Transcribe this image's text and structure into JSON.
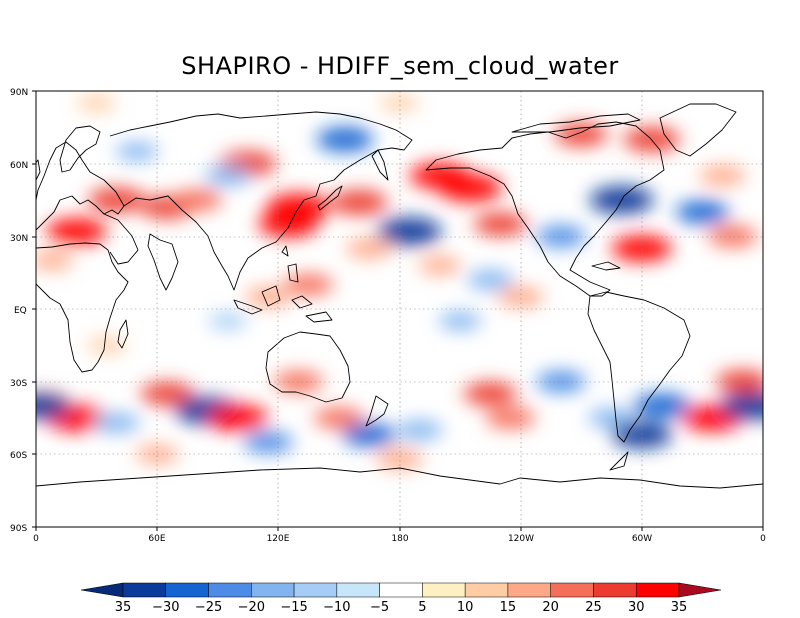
{
  "title": "SHAPIRO - HDIFF_sem_cloud_water",
  "map": {
    "projection": "cylindrical equidistant, global",
    "lat_labels": [
      "90N",
      "60N",
      "30N",
      "EQ",
      "30S",
      "60S",
      "90S"
    ],
    "lon_labels": [
      "0",
      "60E",
      "120E",
      "180",
      "120W",
      "60W",
      "0"
    ],
    "gridlines": "dotted, every 30 degrees",
    "coastlines": "black outline"
  },
  "colorbar": {
    "labels": [
      "35",
      "−30",
      "−25",
      "−20",
      "−15",
      "−10",
      "−5",
      "5",
      "10",
      "15",
      "20",
      "25",
      "30",
      "35"
    ],
    "bins": [
      "#0a3a9a",
      "#1464d2",
      "#4c8ce6",
      "#82b4f0",
      "#a5cdf5",
      "#c8e6fa",
      "#ffffff",
      "#fff0c3",
      "#ffcda5",
      "#ffa887",
      "#f56e5a",
      "#ec3c30",
      "#ff0000"
    ],
    "low_end_color": "#062a78",
    "high_end_color": "#aa0a1e"
  },
  "anomalies": [
    {
      "lon": 20,
      "lat": 32,
      "v": 0.9
    },
    {
      "lon": 8,
      "lat": 20,
      "v": 0.4
    },
    {
      "lon": 40,
      "lat": 45,
      "v": 0.8
    },
    {
      "lon": 65,
      "lat": 42,
      "v": 0.7
    },
    {
      "lon": 105,
      "lat": 60,
      "v": 0.8
    },
    {
      "lon": 80,
      "lat": 45,
      "v": 0.6
    },
    {
      "lon": 130,
      "lat": 42,
      "v": 1.0
    },
    {
      "lon": 125,
      "lat": 35,
      "v": 0.9
    },
    {
      "lon": 160,
      "lat": 44,
      "v": 0.8
    },
    {
      "lon": 95,
      "lat": 55,
      "v": -0.5
    },
    {
      "lon": 153,
      "lat": 70,
      "v": -0.8
    },
    {
      "lon": 185,
      "lat": 32,
      "v": -1.0
    },
    {
      "lon": 200,
      "lat": 55,
      "v": 0.9
    },
    {
      "lon": 215,
      "lat": 50,
      "v": 1.0
    },
    {
      "lon": 230,
      "lat": 35,
      "v": 0.7
    },
    {
      "lon": 165,
      "lat": 25,
      "v": 0.5
    },
    {
      "lon": 200,
      "lat": 18,
      "v": 0.4
    },
    {
      "lon": 225,
      "lat": 12,
      "v": -0.5
    },
    {
      "lon": 260,
      "lat": 30,
      "v": -0.6
    },
    {
      "lon": 290,
      "lat": 45,
      "v": -1.0
    },
    {
      "lon": 300,
      "lat": 25,
      "v": 0.9
    },
    {
      "lon": 305,
      "lat": 70,
      "v": 0.8
    },
    {
      "lon": 270,
      "lat": 72,
      "v": 0.7
    },
    {
      "lon": 330,
      "lat": 40,
      "v": -0.7
    },
    {
      "lon": 345,
      "lat": 30,
      "v": 0.6
    },
    {
      "lon": 340,
      "lat": 55,
      "v": 0.5
    },
    {
      "lon": 115,
      "lat": 5,
      "v": 0.5
    },
    {
      "lon": 135,
      "lat": 10,
      "v": 0.6
    },
    {
      "lon": 240,
      "lat": 5,
      "v": 0.5
    },
    {
      "lon": 210,
      "lat": -5,
      "v": -0.4
    },
    {
      "lon": 95,
      "lat": -5,
      "v": -0.3
    },
    {
      "lon": 35,
      "lat": -15,
      "v": 0.3
    },
    {
      "lon": 20,
      "lat": -45,
      "v": 0.9
    },
    {
      "lon": 5,
      "lat": -38,
      "v": 0.5
    },
    {
      "lon": 2,
      "lat": -40,
      "v": -0.9
    },
    {
      "lon": 40,
      "lat": -47,
      "v": -0.5
    },
    {
      "lon": 65,
      "lat": -35,
      "v": 0.7
    },
    {
      "lon": 85,
      "lat": -42,
      "v": -1.0
    },
    {
      "lon": 100,
      "lat": -45,
      "v": 0.9
    },
    {
      "lon": 115,
      "lat": -55,
      "v": -0.6
    },
    {
      "lon": 130,
      "lat": -30,
      "v": 0.6
    },
    {
      "lon": 150,
      "lat": -45,
      "v": 0.6
    },
    {
      "lon": 165,
      "lat": -52,
      "v": -0.7
    },
    {
      "lon": 190,
      "lat": -50,
      "v": -0.5
    },
    {
      "lon": 225,
      "lat": -35,
      "v": 0.7
    },
    {
      "lon": 235,
      "lat": -45,
      "v": 0.6
    },
    {
      "lon": 260,
      "lat": -30,
      "v": -0.6
    },
    {
      "lon": 285,
      "lat": -45,
      "v": -0.5
    },
    {
      "lon": 310,
      "lat": -40,
      "v": -0.8
    },
    {
      "lon": 335,
      "lat": -45,
      "v": 0.9
    },
    {
      "lon": 355,
      "lat": -40,
      "v": -1.0
    },
    {
      "lon": 350,
      "lat": -30,
      "v": 0.7
    },
    {
      "lon": 300,
      "lat": -52,
      "v": -0.9
    },
    {
      "lon": 180,
      "lat": -62,
      "v": 0.5
    },
    {
      "lon": 60,
      "lat": -60,
      "v": 0.4
    },
    {
      "lon": 180,
      "lat": 85,
      "v": 0.3
    },
    {
      "lon": 30,
      "lat": 85,
      "v": 0.3
    },
    {
      "lon": 50,
      "lat": 65,
      "v": -0.4
    }
  ]
}
